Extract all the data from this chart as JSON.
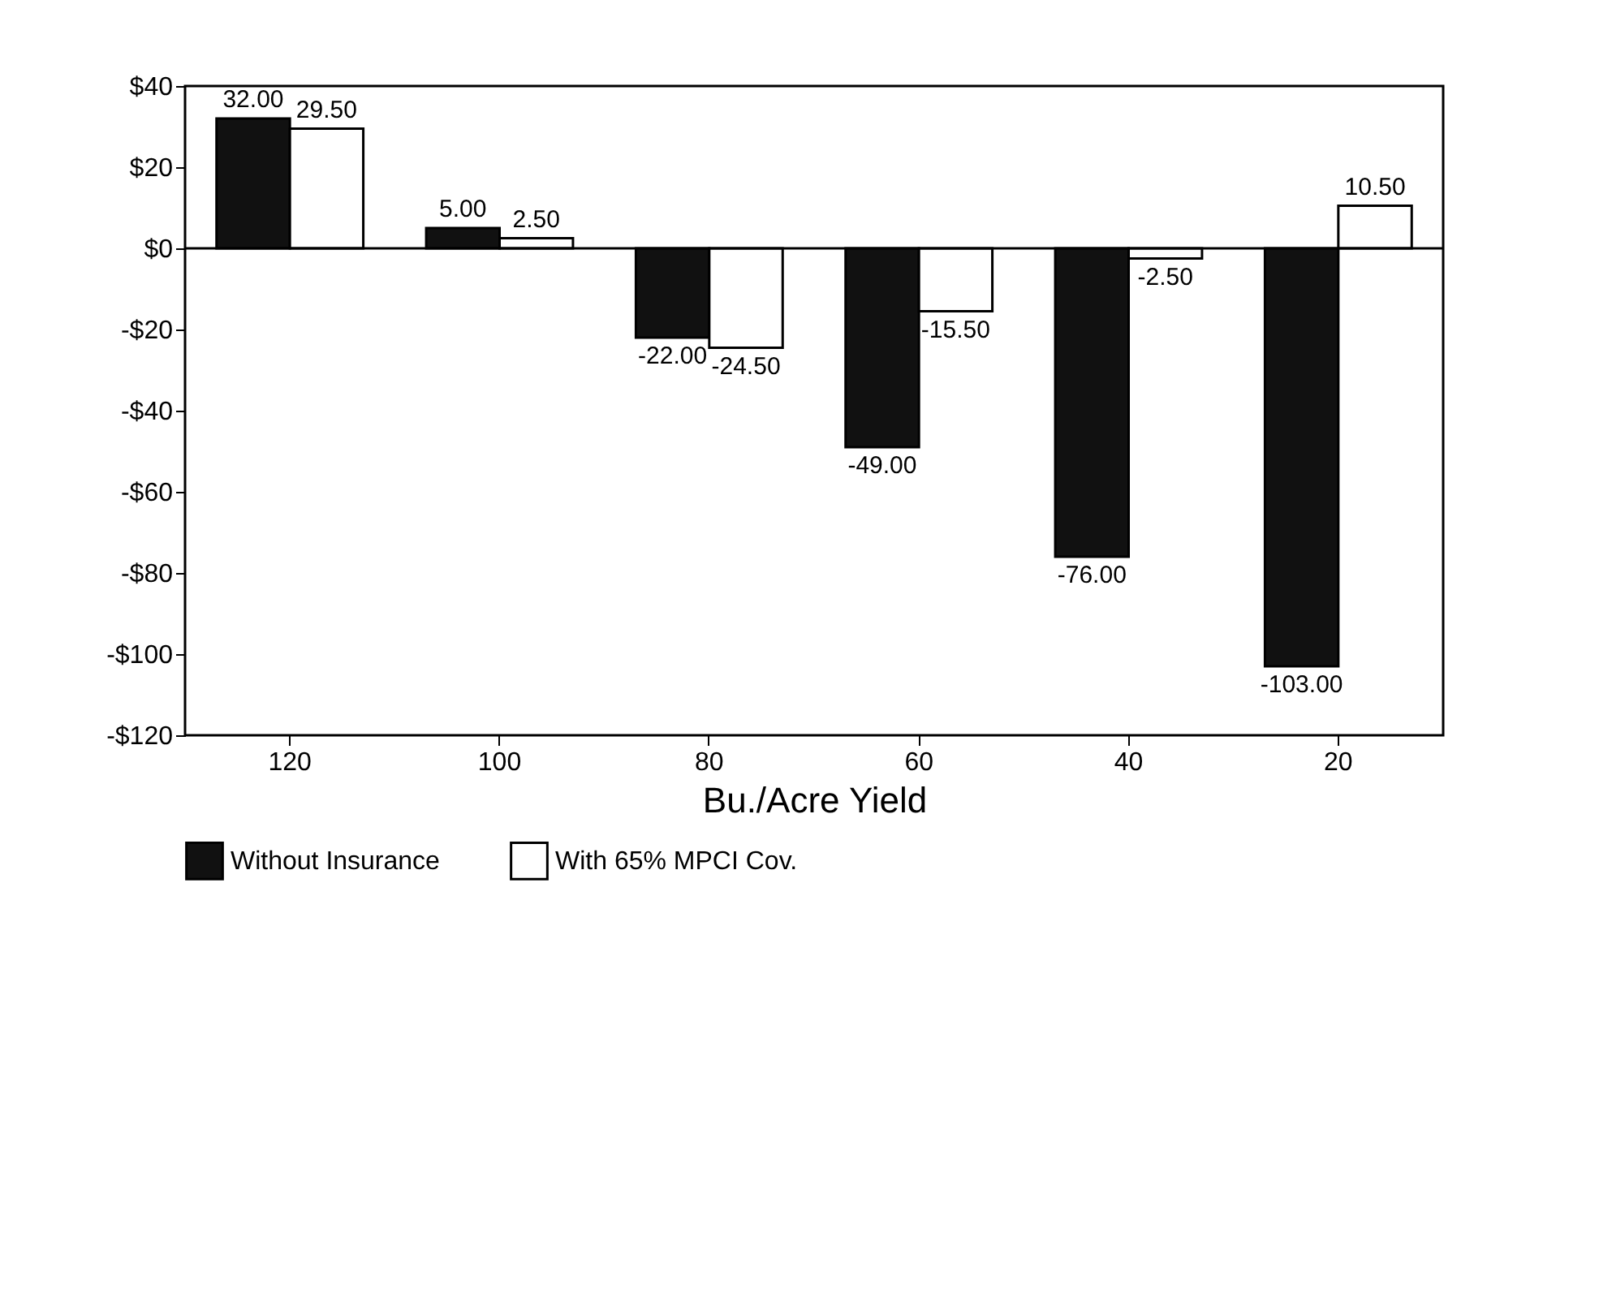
{
  "chart_data": {
    "type": "bar",
    "xlabel": "Bu./Acre Yield",
    "categories": [
      "120",
      "100",
      "80",
      "60",
      "40",
      "20"
    ],
    "series": [
      {
        "name": "Without Insurance",
        "color": "#111111",
        "values": [
          32,
          5,
          -22,
          -49,
          -76,
          -103
        ],
        "value_labels": [
          "32.00",
          "5.00",
          "-22.00",
          "-49.00",
          "-76.00",
          "-103.00"
        ]
      },
      {
        "name": "With 65% MPCI Cov.",
        "color": "#ffffff",
        "values": [
          29.5,
          2.5,
          -24.5,
          -15.5,
          -2.5,
          10.5
        ],
        "value_labels": [
          "29.50",
          "2.50",
          "-24.50",
          "-15.50",
          "-2.50",
          "10.50"
        ]
      }
    ],
    "ylim": [
      -120,
      40
    ],
    "yticks": [
      {
        "value": 40,
        "label": "$40"
      },
      {
        "value": 20,
        "label": "$20"
      },
      {
        "value": 0,
        "label": "$0"
      },
      {
        "value": -20,
        "label": "-$20"
      },
      {
        "value": -40,
        "label": "-$40"
      },
      {
        "value": -60,
        "label": "-$60"
      },
      {
        "value": -80,
        "label": "-$80"
      },
      {
        "value": -100,
        "label": "-$100"
      },
      {
        "value": -120,
        "label": "-$120"
      }
    ],
    "ref_lines": [
      {
        "axis": "y",
        "value": 0
      }
    ],
    "grid": false,
    "legend": "bottom"
  }
}
